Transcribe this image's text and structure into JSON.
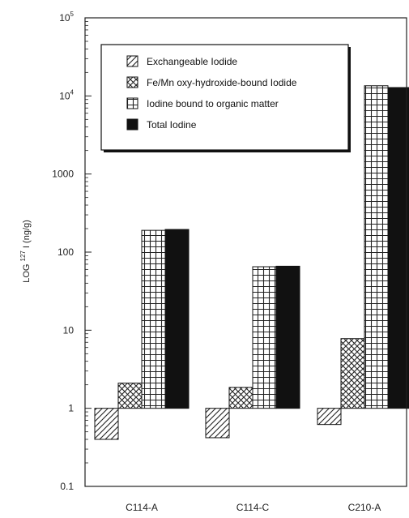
{
  "chart_data": {
    "type": "bar",
    "y_scale": "log",
    "ylim": [
      0.1,
      100000
    ],
    "baseline": 1,
    "grid": false,
    "legend_position": "top-right",
    "ylabel_prefix": "LOG",
    "ylabel_sup": "127",
    "ylabel_suffix": "I (ng/g)",
    "categories": [
      "C114-A",
      "C114-C",
      "C210-A"
    ],
    "y_ticks": [
      {
        "value": 0.1,
        "label": "0.1"
      },
      {
        "value": 1,
        "label": "1"
      },
      {
        "value": 10,
        "label": "10"
      },
      {
        "value": 100,
        "label": "100"
      },
      {
        "value": 1000,
        "label": "1000"
      },
      {
        "value": 10000,
        "base": "10",
        "exp": "4"
      },
      {
        "value": 100000,
        "base": "10",
        "exp": "5"
      }
    ],
    "series": [
      {
        "name": "Exchangeable Iodide",
        "pattern": "diagonal",
        "values": [
          0.4,
          0.42,
          0.62
        ]
      },
      {
        "name": "Fe/Mn oxy-hydroxide-bound Iodide",
        "pattern": "crosshatch",
        "values": [
          2.1,
          1.85,
          7.8
        ]
      },
      {
        "name": "Iodine bound to organic matter",
        "pattern": "grid",
        "values": [
          190,
          65,
          13500
        ]
      },
      {
        "name": "Total Iodine",
        "pattern": "solid",
        "values": [
          195,
          66,
          12800
        ]
      }
    ]
  }
}
